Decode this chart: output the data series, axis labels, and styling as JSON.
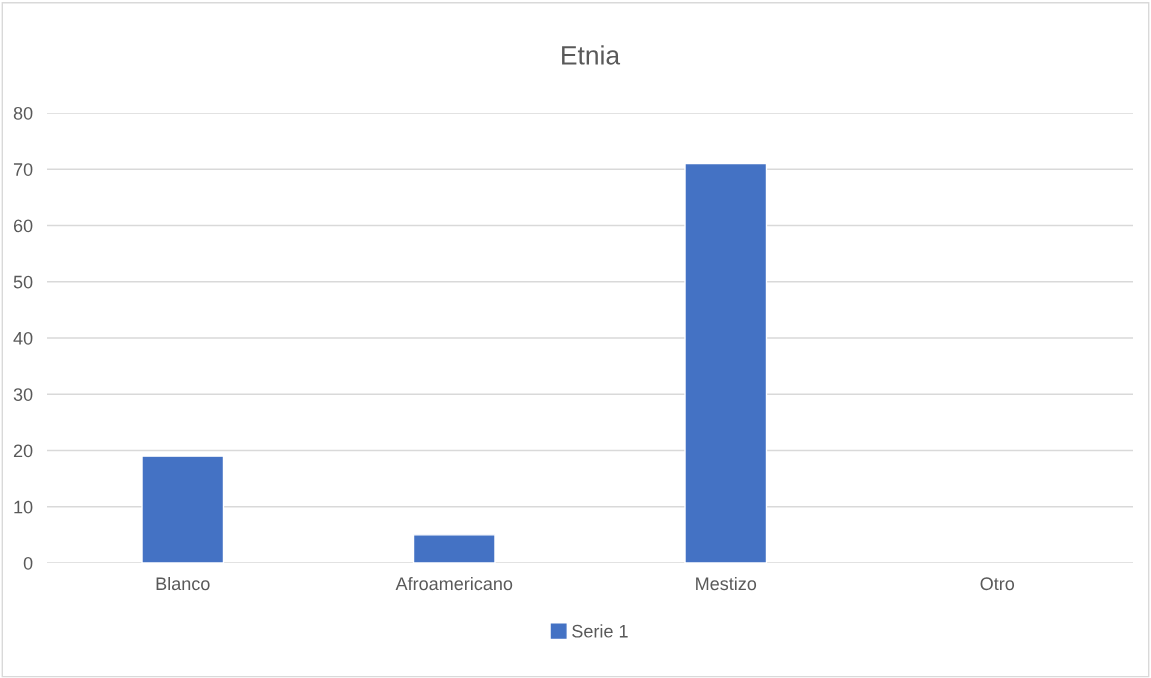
{
  "chart_data": {
    "type": "bar",
    "title": "Etnia",
    "categories": [
      "Blanco",
      "Afroamericano",
      "Mestizo",
      "Otro"
    ],
    "series": [
      {
        "name": "Serie 1",
        "color": "#4472c4",
        "values": [
          19,
          5,
          71,
          0
        ]
      }
    ],
    "ylim": [
      0,
      80
    ],
    "yticks": [
      0,
      10,
      20,
      30,
      40,
      50,
      60,
      70,
      80
    ],
    "grid": "y",
    "legend": "bottom"
  }
}
